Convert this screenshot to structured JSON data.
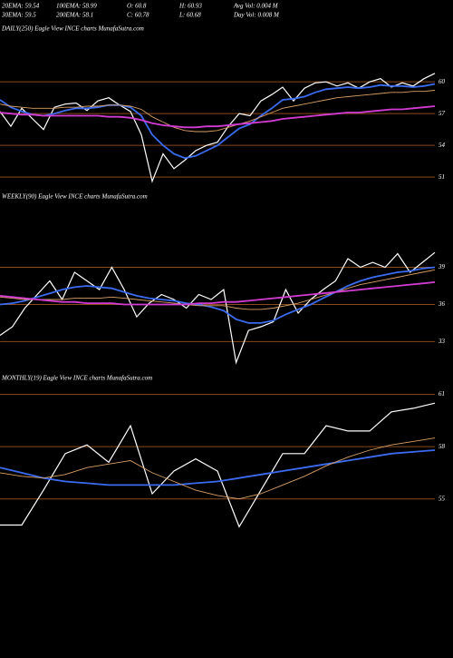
{
  "header": [
    [
      "20EMA: 59.54",
      "100EMA: 58.99",
      "O: 60.8",
      "H: 60.93",
      "Avg Vol: 0.004  M"
    ],
    [
      "30EMA: 59.5",
      "200EMA: 58.1",
      "C: 60.78",
      "L: 60.68",
      "Day Vol: 0.008  M"
    ]
  ],
  "chart_data": [
    {
      "type": "line",
      "title": "DAILY(250) Eagle   View   INCE charts MunafaSutra.com",
      "ylim": [
        49.3,
        64.3
      ],
      "yticks": [
        60,
        57,
        54,
        51
      ],
      "grid": true,
      "grid_color": "#8b4a1c",
      "series": [
        {
          "color": "#ffffff",
          "values": [
            57.2,
            55.8,
            57.5,
            56.5,
            55.5,
            57.6,
            57.9,
            58.0,
            57.3,
            58.2,
            58.5,
            57.8,
            57.2,
            55.0,
            50.6,
            53.2,
            51.8,
            52.6,
            53.5,
            54.0,
            54.3,
            55.8,
            57.0,
            56.8,
            58.2,
            58.8,
            59.5,
            58.2,
            59.4,
            59.9,
            60.0,
            59.6,
            59.9,
            59.4,
            60.0,
            60.3,
            59.5,
            59.9,
            59.6,
            60.3,
            60.8
          ]
        },
        {
          "color": "#3b6cf0",
          "values": [
            58.3,
            57.6,
            57.2,
            56.9,
            56.8,
            57.0,
            57.3,
            57.5,
            57.5,
            57.6,
            57.8,
            57.8,
            57.6,
            56.8,
            55.0,
            54.0,
            53.2,
            52.8,
            53.0,
            53.5,
            54.0,
            54.8,
            55.6,
            56.0,
            56.8,
            57.5,
            58.3,
            58.4,
            58.6,
            59.0,
            59.3,
            59.4,
            59.5,
            59.4,
            59.5,
            59.7,
            59.6,
            59.6,
            59.5,
            59.6,
            59.8
          ]
        },
        {
          "color": "#d9a066",
          "values": [
            57.9,
            57.7,
            57.6,
            57.5,
            57.5,
            57.5,
            57.6,
            57.6,
            57.7,
            57.7,
            57.8,
            57.8,
            57.7,
            57.4,
            56.7,
            56.2,
            55.7,
            55.4,
            55.3,
            55.3,
            55.4,
            55.7,
            56.0,
            56.3,
            56.7,
            57.1,
            57.5,
            57.7,
            57.9,
            58.1,
            58.3,
            58.5,
            58.6,
            58.7,
            58.8,
            58.9,
            59.0,
            59.0,
            59.1,
            59.1,
            59.2
          ]
        },
        {
          "color": "#d23cd2",
          "values": [
            57.1,
            57.0,
            56.9,
            56.9,
            56.8,
            56.8,
            56.8,
            56.8,
            56.8,
            56.8,
            56.7,
            56.7,
            56.6,
            56.4,
            56.1,
            55.9,
            55.8,
            55.7,
            55.7,
            55.8,
            55.8,
            55.9,
            56.0,
            56.1,
            56.2,
            56.3,
            56.5,
            56.6,
            56.7,
            56.8,
            56.9,
            57.0,
            57.1,
            57.1,
            57.2,
            57.3,
            57.4,
            57.4,
            57.5,
            57.6,
            57.7
          ]
        }
      ]
    },
    {
      "type": "line",
      "title": "WEEKLY(90) Eagle   View   INCE charts MunafaSutra.com",
      "ylim": [
        30.9,
        44.1
      ],
      "yticks": [
        39,
        36,
        33
      ],
      "grid": true,
      "grid_color": "#8b4a1c",
      "series": [
        {
          "color": "#ffffff",
          "values": [
            33.5,
            34.2,
            35.7,
            36.8,
            37.9,
            36.4,
            38.6,
            37.9,
            37.2,
            39.0,
            37.2,
            35.0,
            36.1,
            36.8,
            36.4,
            35.7,
            36.8,
            36.4,
            37.2,
            31.3,
            33.9,
            34.2,
            34.6,
            37.2,
            35.3,
            36.4,
            37.2,
            37.9,
            39.7,
            39.0,
            39.4,
            39.0,
            40.1,
            38.6,
            39.4,
            40.2
          ]
        },
        {
          "color": "#3b6cf0",
          "values": [
            36.0,
            36.1,
            36.3,
            36.6,
            36.9,
            37.2,
            37.4,
            37.5,
            37.4,
            37.3,
            37.0,
            36.7,
            36.5,
            36.4,
            36.3,
            36.1,
            36.0,
            35.8,
            35.5,
            34.8,
            34.5,
            34.5,
            34.7,
            35.2,
            35.6,
            36.0,
            36.5,
            37.0,
            37.5,
            37.9,
            38.2,
            38.4,
            38.6,
            38.7,
            38.9,
            39.0
          ]
        },
        {
          "color": "#d9a066",
          "values": [
            36.6,
            36.5,
            36.4,
            36.4,
            36.4,
            36.4,
            36.5,
            36.5,
            36.5,
            36.6,
            36.5,
            36.4,
            36.3,
            36.2,
            36.1,
            36.0,
            35.9,
            35.9,
            35.9,
            35.7,
            35.6,
            35.6,
            35.7,
            35.9,
            36.1,
            36.4,
            36.7,
            37.0,
            37.3,
            37.6,
            37.8,
            38.0,
            38.2,
            38.4,
            38.6,
            38.8
          ]
        },
        {
          "color": "#d23cd2",
          "values": [
            36.7,
            36.6,
            36.5,
            36.4,
            36.3,
            36.2,
            36.2,
            36.1,
            36.1,
            36.1,
            36.0,
            36.0,
            36.0,
            36.0,
            36.0,
            36.0,
            36.1,
            36.1,
            36.2,
            36.2,
            36.3,
            36.4,
            36.5,
            36.6,
            36.7,
            36.8,
            36.9,
            37.0,
            37.1,
            37.2,
            37.3,
            37.4,
            37.5,
            37.6,
            37.7,
            37.8
          ]
        }
      ]
    },
    {
      "type": "line",
      "title": "MONTHLY(19) Eagle   View   INCE charts MunafaSutra.com",
      "ylim": [
        52.9,
        61.5
      ],
      "yticks": [
        61,
        58,
        55
      ],
      "grid": true,
      "grid_color": "#8b4a1c",
      "series": [
        {
          "color": "#ffffff",
          "values": [
            53.5,
            53.5,
            55.5,
            57.6,
            58.1,
            57.1,
            59.2,
            55.3,
            56.6,
            57.3,
            56.6,
            53.4,
            55.5,
            57.6,
            57.6,
            59.2,
            58.9,
            58.9,
            60.0,
            60.2,
            60.5
          ]
        },
        {
          "color": "#3b6cf0",
          "values": [
            56.8,
            56.5,
            56.2,
            56.0,
            55.9,
            55.8,
            55.8,
            55.8,
            55.8,
            55.9,
            56.0,
            56.2,
            56.4,
            56.6,
            56.8,
            57.0,
            57.2,
            57.4,
            57.6,
            57.7,
            57.8
          ]
        },
        {
          "color": "#d9a066",
          "values": [
            56.5,
            56.3,
            56.2,
            56.4,
            56.8,
            57.0,
            57.2,
            56.5,
            56.0,
            55.5,
            55.2,
            55.0,
            55.3,
            55.8,
            56.3,
            56.9,
            57.4,
            57.8,
            58.1,
            58.3,
            58.5
          ]
        }
      ]
    }
  ]
}
